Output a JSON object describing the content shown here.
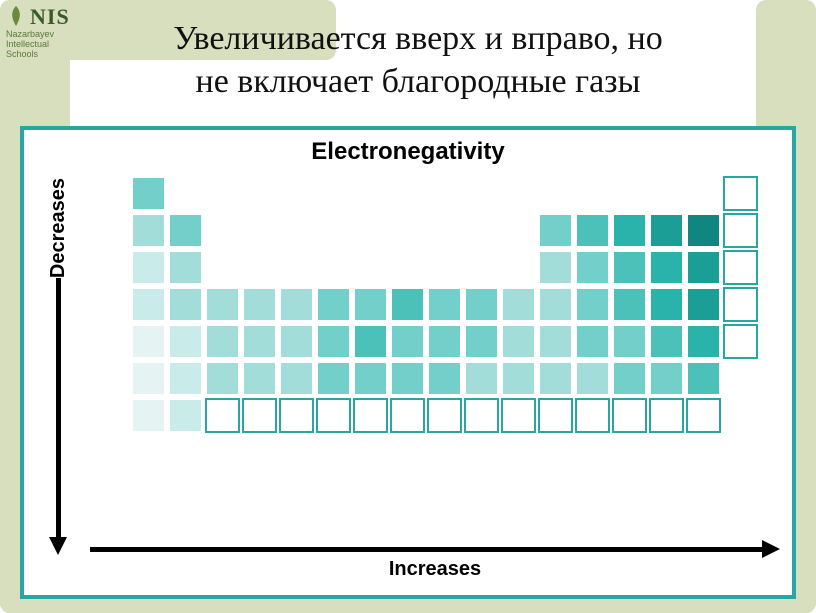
{
  "logo": {
    "abbrev": "NIS",
    "line1": "Nazarbayev",
    "line2": "Intellectual",
    "line3": "Schools"
  },
  "title_line1": "Увеличивается  вверх и вправо, но",
  "title_line2": "не включает благородные газы",
  "chart": {
    "title": "Electronegativity",
    "y_label": "Decreases",
    "x_label": "Increases",
    "cell_size": 35,
    "cell_gap": 2,
    "rows": 7,
    "cols": 18,
    "colors": {
      "lightest": "#e5f4f3",
      "light": "#c9ebe9",
      "midlight": "#a3ddd9",
      "mid": "#73cfc9",
      "middark": "#4cc1ba",
      "dark": "#2ab3ab",
      "darker": "#1a9e96",
      "darkest": "#0f8780",
      "deep": "#086b64"
    },
    "grid": [
      [
        null,
        "mid",
        null,
        null,
        null,
        null,
        null,
        null,
        null,
        null,
        null,
        null,
        null,
        null,
        null,
        null,
        null,
        "empty"
      ],
      [
        null,
        "midlight",
        "mid",
        null,
        null,
        null,
        null,
        null,
        null,
        null,
        null,
        null,
        "mid",
        "middark",
        "dark",
        "darker",
        "darkest",
        "empty"
      ],
      [
        null,
        "light",
        "midlight",
        null,
        null,
        null,
        null,
        null,
        null,
        null,
        null,
        null,
        "midlight",
        "mid",
        "middark",
        "dark",
        "darker",
        "empty"
      ],
      [
        null,
        "light",
        "midlight",
        "midlight",
        "midlight",
        "midlight",
        "mid",
        "mid",
        "middark",
        "mid",
        "mid",
        "midlight",
        "midlight",
        "mid",
        "middark",
        "dark",
        "darker",
        "empty"
      ],
      [
        null,
        "lightest",
        "light",
        "midlight",
        "midlight",
        "midlight",
        "mid",
        "middark",
        "mid",
        "mid",
        "mid",
        "midlight",
        "midlight",
        "mid",
        "mid",
        "middark",
        "dark",
        "empty"
      ],
      [
        null,
        "lightest",
        "light",
        "midlight",
        "midlight",
        "midlight",
        "mid",
        "mid",
        "mid",
        "mid",
        "midlight",
        "midlight",
        "midlight",
        "midlight",
        "mid",
        "mid",
        "middark",
        null
      ],
      [
        null,
        "lightest",
        "light",
        "empty",
        "empty",
        "empty",
        "empty",
        "empty",
        "empty",
        "empty",
        "empty",
        "empty",
        "empty",
        "empty",
        "empty",
        "empty",
        "empty",
        null
      ]
    ]
  },
  "colors": {
    "frame_bg": "#d7dfbe",
    "chart_border": "#2aa6a0"
  }
}
